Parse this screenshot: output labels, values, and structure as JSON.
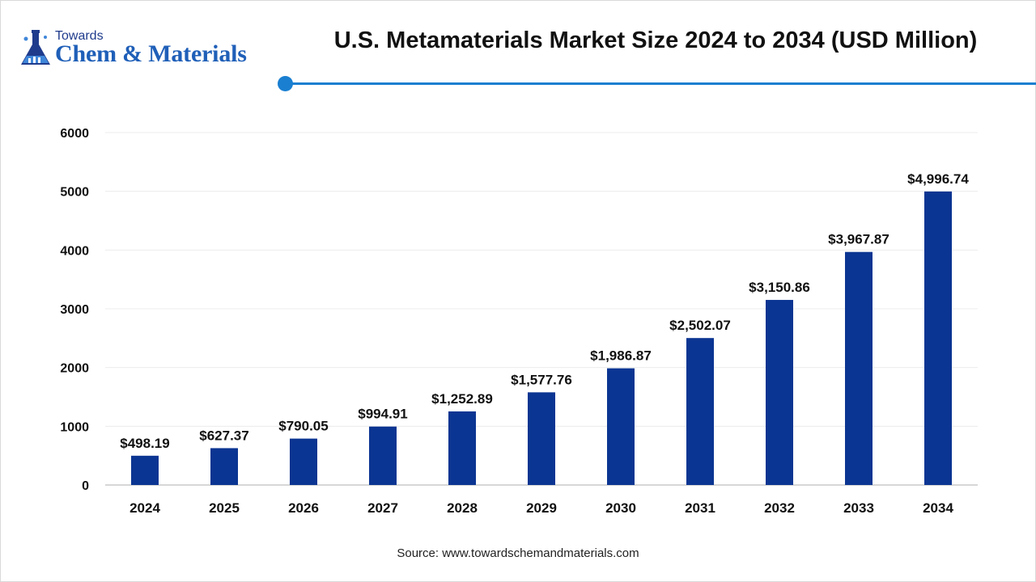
{
  "brand": {
    "small_text": "Towards",
    "big_text": "Chem & Materials",
    "color": "#1f5fb8"
  },
  "accent_color": "#1a7fd1",
  "bar_color": "#0b3592",
  "source_text": "Source: www.towardschemandmaterials.com",
  "chart_data": {
    "type": "bar",
    "title": "U.S. Metamaterials Market Size 2024 to 2034 (USD Million)",
    "xlabel": "",
    "ylabel": "",
    "categories": [
      "2024",
      "2025",
      "2026",
      "2027",
      "2028",
      "2029",
      "2030",
      "2031",
      "2032",
      "2033",
      "2034"
    ],
    "values": [
      498.19,
      627.37,
      790.05,
      994.91,
      1252.89,
      1577.76,
      1986.87,
      2502.07,
      3150.86,
      3967.87,
      4996.74
    ],
    "data_labels": [
      "$498.19",
      "$627.37",
      "$790.05",
      "$994.91",
      "$1,252.89",
      "$1,577.76",
      "$1,986.87",
      "$2,502.07",
      "$3,150.86",
      "$3,967.87",
      "$4,996.74"
    ],
    "ylim": [
      0,
      6000
    ],
    "yticks": [
      0,
      1000,
      2000,
      3000,
      4000,
      5000,
      6000
    ],
    "grid": true,
    "legend": "none"
  }
}
